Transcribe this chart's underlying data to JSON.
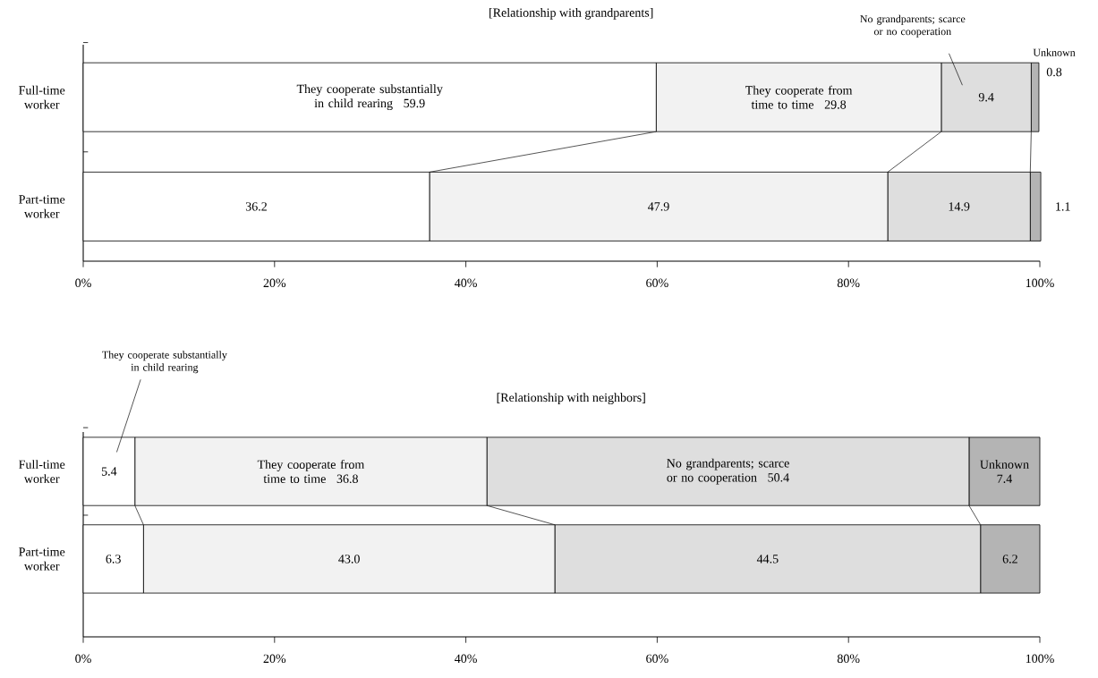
{
  "chart_data": [
    {
      "type": "bar",
      "orientation": "horizontal",
      "stacked": true,
      "title": "[Relationship with grandparents]",
      "categories": [
        "Full-time worker",
        "Part-time worker"
      ],
      "series": [
        {
          "name": "They cooperate substantially in child rearing",
          "color": "#ffffff",
          "values": [
            59.9,
            36.2
          ]
        },
        {
          "name": "They cooperate from time to time",
          "color": "#f2f2f2",
          "values": [
            29.8,
            47.9
          ]
        },
        {
          "name": "No grandparents; scarce or no cooperation",
          "color": "#dedede",
          "values": [
            9.4,
            14.9
          ]
        },
        {
          "name": "Unknown",
          "color": "#b4b4b4",
          "values": [
            0.8,
            1.1
          ]
        }
      ],
      "xlim": [
        0,
        100
      ],
      "xticks": [
        {
          "value": 0,
          "label": "0%"
        },
        {
          "value": 20,
          "label": "20%"
        },
        {
          "value": 40,
          "label": "40%"
        },
        {
          "value": 60,
          "label": "60%"
        },
        {
          "value": 80,
          "label": "80%"
        },
        {
          "value": 100,
          "label": "100%"
        }
      ],
      "data_labels": true
    },
    {
      "type": "bar",
      "orientation": "horizontal",
      "stacked": true,
      "title": "[Relationship with neighbors]",
      "categories": [
        "Full-time worker",
        "Part-time worker"
      ],
      "series": [
        {
          "name": "They cooperate substantially in child rearing",
          "color": "#ffffff",
          "values": [
            5.4,
            6.3
          ],
          "value_labels": [
            "5.4",
            "6.3"
          ]
        },
        {
          "name": "They cooperate from time to time",
          "color": "#f2f2f2",
          "values": [
            36.8,
            43.0
          ],
          "value_labels": [
            "36.8",
            "43.0"
          ]
        },
        {
          "name": "No grandparents; scarce or no cooperation",
          "color": "#dedede",
          "values": [
            50.4,
            44.5
          ],
          "value_labels": [
            "50.4",
            "44.5"
          ]
        },
        {
          "name": "Unknown",
          "color": "#b4b4b4",
          "values": [
            7.4,
            6.2
          ],
          "value_labels": [
            "7.4",
            "6.2"
          ]
        }
      ],
      "xlim": [
        0,
        100
      ],
      "xticks": [
        {
          "value": 0,
          "label": "0%"
        },
        {
          "value": 20,
          "label": "20%"
        },
        {
          "value": 40,
          "label": "40%"
        },
        {
          "value": 60,
          "label": "60%"
        },
        {
          "value": 80,
          "label": "80%"
        },
        {
          "value": 100,
          "label": "100%"
        }
      ]
    }
  ]
}
